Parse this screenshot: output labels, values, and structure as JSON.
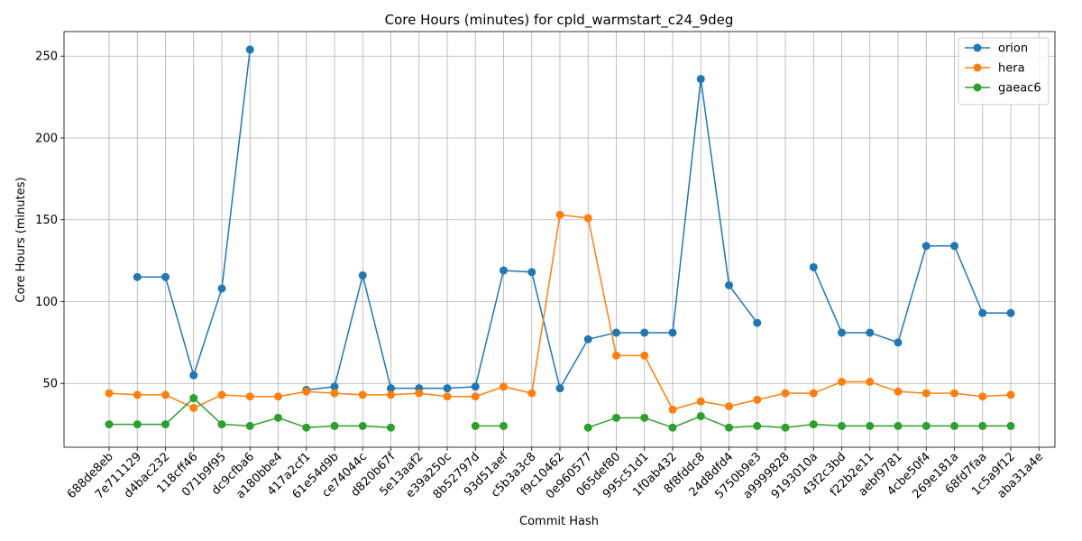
{
  "chart_data": {
    "type": "line",
    "title": "Core Hours (minutes) for cpld_warmstart_c24_9deg",
    "xlabel": "Commit Hash",
    "ylabel": "Core Hours (minutes)",
    "categories": [
      "688de8eb",
      "7e711129",
      "d4bac232",
      "118cff46",
      "071b9f95",
      "dc9cfba6",
      "a180bbe4",
      "417a2cf1",
      "61e54d9b",
      "ce74044c",
      "d820b67f",
      "5e13aaf2",
      "e39a250c",
      "8b52797d",
      "93d51aef",
      "c5b3a3c8",
      "f9c10462",
      "0e960577",
      "065def80",
      "995c51d1",
      "1f0ab432",
      "8f8fddc8",
      "24d8dfd4",
      "5750b9e3",
      "a9999828",
      "9193010a",
      "43f2c3bd",
      "f22b2e11",
      "aebf9781",
      "4cbe50f4",
      "269e181a",
      "68fd7faa",
      "1c5a9f12",
      "aba31a4e"
    ],
    "y_ticks": [
      50,
      100,
      150,
      200,
      250
    ],
    "ylim": [
      11,
      265
    ],
    "grid": true,
    "legend_position": "top-right",
    "series": [
      {
        "name": "orion",
        "color": "#1f77b4",
        "values": [
          null,
          115,
          115,
          55,
          108,
          254,
          null,
          46,
          48,
          116,
          47,
          47,
          47,
          48,
          119,
          118,
          47,
          77,
          81,
          81,
          81,
          236,
          110,
          87,
          null,
          121,
          81,
          81,
          75,
          134,
          134,
          93,
          93,
          null
        ]
      },
      {
        "name": "hera",
        "color": "#ff7f0e",
        "values": [
          44,
          43,
          43,
          35,
          43,
          42,
          42,
          45,
          44,
          43,
          43,
          44,
          42,
          42,
          48,
          44,
          153,
          151,
          67,
          67,
          34,
          39,
          36,
          40,
          44,
          44,
          51,
          51,
          45,
          44,
          44,
          42,
          43,
          null
        ]
      },
      {
        "name": "gaeac6",
        "color": "#2ca02c",
        "values": [
          25,
          25,
          25,
          41,
          25,
          24,
          29,
          23,
          24,
          24,
          23,
          null,
          null,
          24,
          24,
          null,
          null,
          23,
          29,
          29,
          23,
          30,
          23,
          24,
          23,
          25,
          24,
          24,
          24,
          24,
          24,
          24,
          24,
          null
        ]
      }
    ]
  }
}
